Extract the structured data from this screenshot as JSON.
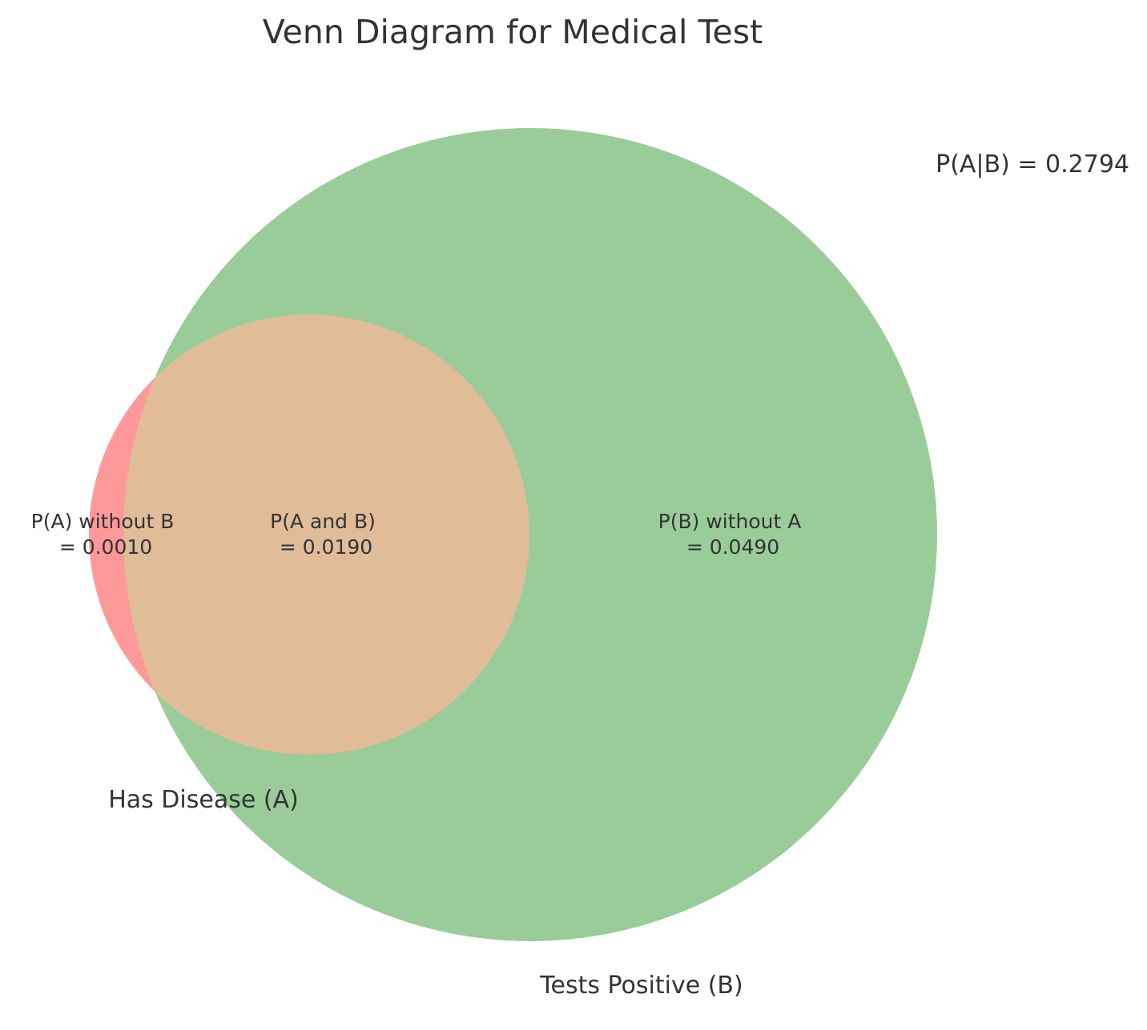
{
  "title": "Venn Diagram for Medical Test",
  "annotation": "P(A|B) = 0.2794",
  "colors": {
    "set_a": "#ff9999",
    "set_b": "#99cc99",
    "intersection": "#e0bc99",
    "text": "#333333",
    "background": "#ffffff"
  },
  "sets": {
    "a": {
      "label": "Has Disease (A)"
    },
    "b": {
      "label": "Tests Positive (B)"
    }
  },
  "regions": {
    "a_only": {
      "line1": "P(A) without B",
      "line2": "= 0.0010",
      "value": 0.001
    },
    "a_and_b": {
      "line1": "P(A and B)",
      "line2": "= 0.0190",
      "value": 0.019
    },
    "b_only": {
      "line1": "P(B) without A",
      "line2": "= 0.0490",
      "value": 0.049
    }
  }
}
